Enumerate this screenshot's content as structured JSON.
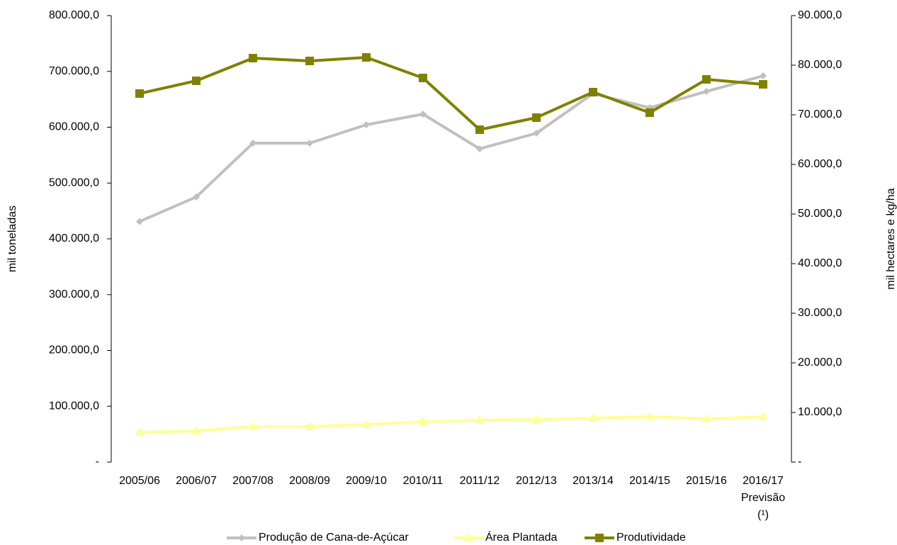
{
  "chart_data": {
    "type": "line",
    "categories": [
      "2005/06",
      "2006/07",
      "2007/08",
      "2008/09",
      "2009/10",
      "2010/11",
      "2011/12",
      "2012/13",
      "2013/14",
      "2014/15",
      "2015/16",
      "2016/17\nPrevisão\n(¹)"
    ],
    "series": [
      {
        "name": "Produção de Cana-de-Açúcar",
        "color": "#c0c0c0",
        "marker": "diamond",
        "axis": "y",
        "values": [
          431000,
          475000,
          571400,
          571400,
          604400,
          623500,
          561300,
          589200,
          660300,
          634900,
          664100,
          692000
        ]
      },
      {
        "name": "Área Plantada",
        "color": "#ffff99",
        "marker": "triangle",
        "axis": "y2",
        "values": [
          6000,
          6290,
          7140,
          7140,
          7570,
          8140,
          8430,
          8570,
          8860,
          9140,
          8710,
          9140
        ]
      },
      {
        "name": "Produtividade",
        "color": "#808000",
        "marker": "square",
        "axis": "y2",
        "values": [
          74290,
          76860,
          81430,
          80860,
          81570,
          77430,
          67000,
          69430,
          74570,
          70430,
          77140,
          76140
        ]
      }
    ],
    "ylabel": "mil toneladas",
    "y2label": "mil hectares e kg/ha",
    "ylim": [
      0,
      800000
    ],
    "yticks": [
      {
        "value": 0,
        "label": "-"
      },
      {
        "value": 100000,
        "label": "100.000,0"
      },
      {
        "value": 200000,
        "label": "200.000,0"
      },
      {
        "value": 300000,
        "label": "300.000,0"
      },
      {
        "value": 400000,
        "label": "400.000,0"
      },
      {
        "value": 500000,
        "label": "500.000,0"
      },
      {
        "value": 600000,
        "label": "600.000,0"
      },
      {
        "value": 700000,
        "label": "700.000,0"
      },
      {
        "value": 800000,
        "label": "800.000,0"
      }
    ],
    "y2lim": [
      0,
      90000
    ],
    "y2ticks": [
      {
        "value": 0,
        "label": "-"
      },
      {
        "value": 10000,
        "label": "10.000,0"
      },
      {
        "value": 20000,
        "label": "20.000,0"
      },
      {
        "value": 30000,
        "label": "30.000,0"
      },
      {
        "value": 40000,
        "label": "40.000,0"
      },
      {
        "value": 50000,
        "label": "50.000,0"
      },
      {
        "value": 60000,
        "label": "60.000,0"
      },
      {
        "value": 70000,
        "label": "70.000,0"
      },
      {
        "value": 80000,
        "label": "80.000,0"
      },
      {
        "value": 90000,
        "label": "90.000,0"
      }
    ],
    "grid": false,
    "legend": "bottom"
  }
}
